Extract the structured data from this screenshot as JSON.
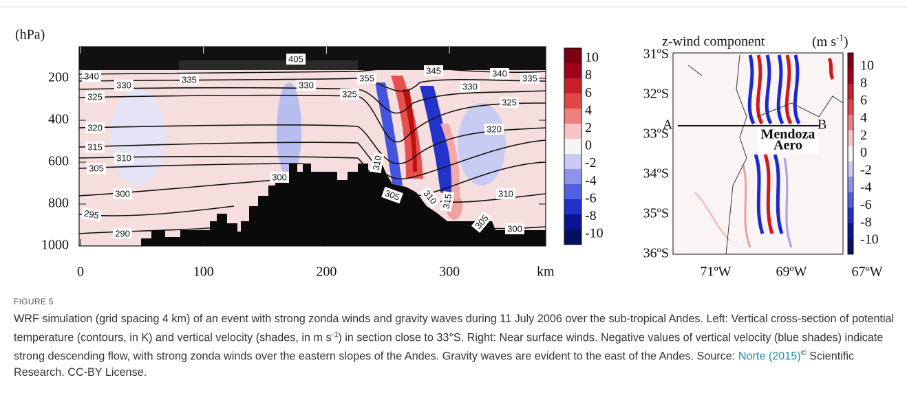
{
  "figure": {
    "left_panel": {
      "y_axis_label": "(hPa)",
      "y_ticks": [
        "200",
        "400",
        "600",
        "800",
        "1000"
      ],
      "x_ticks": [
        "0",
        "100",
        "200",
        "300"
      ],
      "x_axis_label": "km",
      "colorbar_ticks": [
        "10",
        "8",
        "6",
        "4",
        "2",
        "0",
        "-2",
        "-4",
        "-6",
        "-8",
        "-10"
      ],
      "contour_labels": [
        "405",
        "340",
        "330",
        "335",
        "330",
        "325",
        "355",
        "345",
        "340",
        "335",
        "330",
        "325",
        "325",
        "320",
        "320",
        "315",
        "310",
        "305",
        "310",
        "315",
        "300",
        "300",
        "310",
        "305",
        "310",
        "295",
        "290",
        "305",
        "300"
      ]
    },
    "right_panel": {
      "title": "z-wind component",
      "units_prefix": "(m s",
      "units_superscript": "-1",
      "units_suffix": ")",
      "lat_ticks": [
        "31ºS",
        "32ºS",
        "33ºS",
        "34ºS",
        "35ºS",
        "36ºS"
      ],
      "lon_ticks": [
        "71ºW",
        "69ºW",
        "67ºW"
      ],
      "colorbar_ticks": [
        "10",
        "8",
        "6",
        "4",
        "2",
        "0",
        "-2",
        "-4",
        "-6",
        "-8",
        "-10"
      ],
      "section_start": "A",
      "section_end": "B",
      "station_name": [
        "Mendoza",
        "Aero"
      ]
    },
    "caption": {
      "label": "FIGURE 5",
      "text_1": "WRF simulation (grid spacing 4 km) of an event with strong zonda winds and gravity waves during 11 July 2006 over the sub-tropical Andes. Left: Vertical cross-section of potential temperature (contours, in K) and vertical velocity (shades, in m s",
      "superscript": "-1",
      "text_2": ") in section close to 33°S. Right: Near surface winds. Negative values of vertical velocity (blue shades) indicate strong descending flow, with strong zonda winds over the eastern slopes of the Andes. Gravity waves are evident to the east of the Andes. Source: ",
      "link": "Norte (2015)",
      "copyright": "©",
      "text_3": " Scientific Research. CC-BY License."
    }
  }
}
